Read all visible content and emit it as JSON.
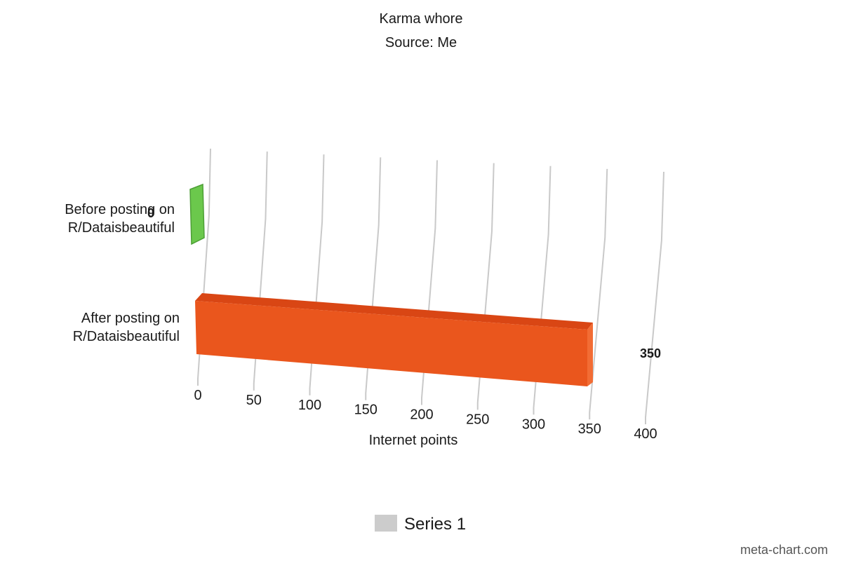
{
  "chart_data": {
    "type": "bar",
    "title": "Karma whore",
    "subtitle": "Source: Me",
    "xlabel": "Internet points",
    "categories": [
      "Before posting on R/Dataisbeautiful",
      "After posting on R/Dataisbeautiful"
    ],
    "category_lines": [
      [
        "Before posting on",
        "R/Dataisbeautiful"
      ],
      [
        "After posting on",
        "R/Dataisbeautiful"
      ]
    ],
    "series": [
      {
        "name": "Series 1",
        "values": [
          0,
          350
        ]
      }
    ],
    "values": [
      0,
      350
    ],
    "value_labels": [
      "0",
      "350"
    ],
    "x_ticks": [
      0,
      50,
      100,
      150,
      200,
      250,
      300,
      350,
      400
    ],
    "xlim": [
      0,
      400
    ],
    "grid": true,
    "orientation": "horizontal",
    "legend_placement": "bottom-center",
    "colors": {
      "bar_1": "#6bc84c",
      "bar_1_stroke": "#4d9f36",
      "bar_2": "#ea561d",
      "bar_2_top": "#d94614",
      "bar_2_side": "#f26c34",
      "grid": "#c9c9c9",
      "legend_swatch": "#cccccc"
    }
  },
  "legend": {
    "label": "Series 1"
  },
  "credit": {
    "text": "meta-chart.com"
  }
}
